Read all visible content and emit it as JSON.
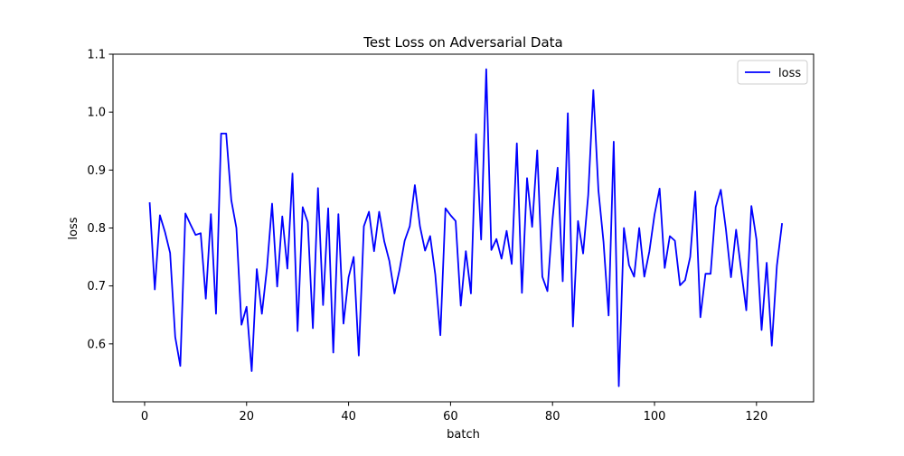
{
  "chart_data": {
    "type": "line",
    "title": "Test Loss on Adversarial Data",
    "xlabel": "batch",
    "ylabel": "loss",
    "xlim": [
      -6.2,
      131.2
    ],
    "ylim": [
      0.5,
      1.1
    ],
    "xticks": [
      0,
      20,
      40,
      60,
      80,
      100,
      120
    ],
    "yticks": [
      0.6,
      0.7,
      0.8,
      0.9,
      1.0,
      1.1
    ],
    "xtick_labels": [
      "0",
      "20",
      "40",
      "60",
      "80",
      "100",
      "120"
    ],
    "ytick_labels": [
      "0.6",
      "0.7",
      "0.8",
      "0.9",
      "1.0",
      "1.1"
    ],
    "grid": false,
    "legend_position": "top-right",
    "series": [
      {
        "name": "loss",
        "color": "#0000ff",
        "x": [
          1,
          2,
          3,
          4,
          5,
          6,
          7,
          8,
          9,
          10,
          11,
          12,
          13,
          14,
          15,
          16,
          17,
          18,
          19,
          20,
          21,
          22,
          23,
          24,
          25,
          26,
          27,
          28,
          29,
          30,
          31,
          32,
          33,
          34,
          35,
          36,
          37,
          38,
          39,
          40,
          41,
          42,
          43,
          44,
          45,
          46,
          47,
          48,
          49,
          50,
          51,
          52,
          53,
          54,
          55,
          56,
          57,
          58,
          59,
          60,
          61,
          62,
          63,
          64,
          65,
          66,
          67,
          68,
          69,
          70,
          71,
          72,
          73,
          74,
          75,
          76,
          77,
          78,
          79,
          80,
          81,
          82,
          83,
          84,
          85,
          86,
          87,
          88,
          89,
          90,
          91,
          92,
          93,
          94,
          95,
          96,
          97,
          98,
          99,
          100,
          101,
          102,
          103,
          104,
          105,
          106,
          107,
          108,
          109,
          110,
          111,
          112,
          113,
          114,
          115,
          116,
          117,
          118,
          119,
          120,
          121,
          122,
          123,
          124,
          125
        ],
        "values": [
          0.843,
          0.694,
          0.822,
          0.793,
          0.757,
          0.612,
          0.562,
          0.825,
          0.806,
          0.788,
          0.791,
          0.678,
          0.824,
          0.652,
          0.963,
          0.963,
          0.848,
          0.8,
          0.633,
          0.664,
          0.553,
          0.729,
          0.652,
          0.731,
          0.842,
          0.699,
          0.82,
          0.73,
          0.894,
          0.622,
          0.836,
          0.81,
          0.627,
          0.869,
          0.667,
          0.834,
          0.585,
          0.824,
          0.635,
          0.715,
          0.75,
          0.58,
          0.803,
          0.828,
          0.76,
          0.828,
          0.777,
          0.743,
          0.687,
          0.728,
          0.778,
          0.803,
          0.874,
          0.803,
          0.761,
          0.786,
          0.72,
          0.615,
          0.834,
          0.822,
          0.812,
          0.666,
          0.76,
          0.687,
          0.962,
          0.78,
          1.074,
          0.762,
          0.781,
          0.747,
          0.795,
          0.738,
          0.946,
          0.688,
          0.886,
          0.802,
          0.934,
          0.716,
          0.691,
          0.815,
          0.904,
          0.708,
          0.998,
          0.63,
          0.812,
          0.756,
          0.857,
          1.038,
          0.865,
          0.776,
          0.649,
          0.949,
          0.527,
          0.8,
          0.736,
          0.716,
          0.8,
          0.716,
          0.76,
          0.823,
          0.868,
          0.731,
          0.786,
          0.778,
          0.701,
          0.71,
          0.75,
          0.863,
          0.646,
          0.721,
          0.721,
          0.836,
          0.866,
          0.798,
          0.715,
          0.797,
          0.727,
          0.658,
          0.838,
          0.78,
          0.624,
          0.74,
          0.597,
          0.735,
          0.807
        ]
      }
    ]
  }
}
